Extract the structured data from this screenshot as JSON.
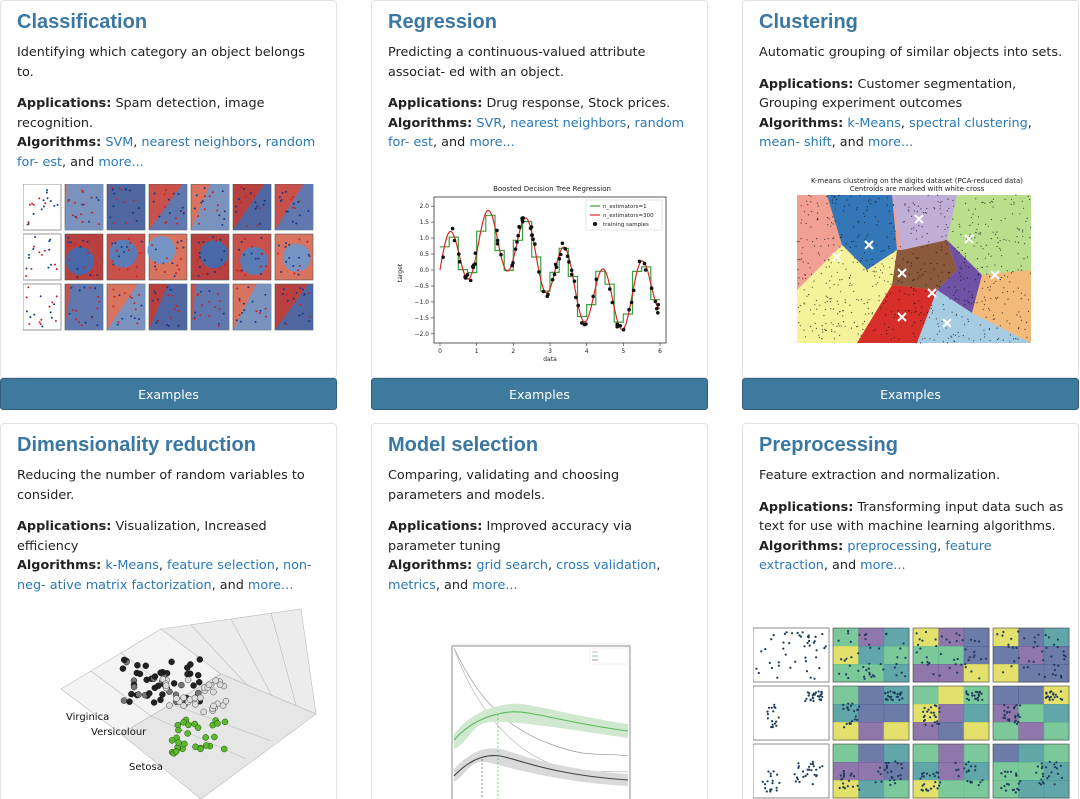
{
  "cards": [
    {
      "title": "Classification",
      "desc": "Identifying which category an object belongs to.",
      "apps_label": "Applications:",
      "apps": "Spam detection, image recognition.",
      "algs_label": "Algorithms:",
      "algs": [
        "SVM",
        "nearest neighbors",
        "random for- est"
      ],
      "more": "more...",
      "button": "Examples"
    },
    {
      "title": "Regression",
      "desc": "Predicting a continuous-valued attribute associat- ed with an object.",
      "apps_label": "Applications:",
      "apps": "Drug response, Stock prices.",
      "algs_label": "Algorithms:",
      "algs": [
        "SVR",
        "nearest neighbors",
        "random for- est"
      ],
      "more": "more...",
      "button": "Examples",
      "chart": {
        "title": "Boosted Decision Tree Regression",
        "xlabel": "data",
        "ylabel": "target",
        "legend": [
          "n_estimators=1",
          "n_estimators=300",
          "training samples"
        ],
        "xticks": [
          "0",
          "1",
          "2",
          "3",
          "4",
          "5",
          "6"
        ],
        "yticks": [
          "2.0",
          "1.5",
          "1.0",
          "0.5",
          "0.0",
          "−0.5",
          "−1.0",
          "−1.5",
          "−2.0"
        ]
      }
    },
    {
      "title": "Clustering",
      "desc": "Automatic grouping of similar objects into sets.",
      "apps_label": "Applications:",
      "apps": "Customer segmentation, Grouping experiment outcomes",
      "algs_label": "Algorithms:",
      "algs": [
        "k-Means",
        "spectral clustering",
        "mean- shift"
      ],
      "more": "more...",
      "button": "Examples",
      "chart": {
        "title_line1": "K-means clustering on the digits dataset (PCA-reduced data)",
        "title_line2": "Centroids are marked with white cross"
      }
    },
    {
      "title": "Dimensionality reduction",
      "desc": "Reducing the number of random variables to consider.",
      "apps_label": "Applications:",
      "apps": "Visualization, Increased efficiency",
      "algs_label": "Algorithms:",
      "algs": [
        "k-Means",
        "feature selection",
        "non-neg- ative matrix factorization"
      ],
      "more": "more...",
      "chart": {
        "labels": [
          "Virginica",
          "Versicolour",
          "Setosa"
        ]
      }
    },
    {
      "title": "Model selection",
      "desc": "Comparing, validating and choosing parameters and models.",
      "apps_label": "Applications:",
      "apps": "Improved accuracy via parameter tuning",
      "algs_label": "Algorithms:",
      "algs": [
        "grid search",
        "cross validation",
        "metrics"
      ],
      "more": "more..."
    },
    {
      "title": "Preprocessing",
      "desc": "Feature extraction and normalization.",
      "apps_label": "Applications:",
      "apps": "Transforming input data such as text for use with machine learning algorithms.",
      "algs_label": "Algorithms:",
      "algs": [
        "preprocessing",
        "feature extraction"
      ],
      "more": "more..."
    }
  ],
  "colors": {
    "title": "#3a77a2",
    "link": "#2a79b4",
    "button": "#3e7a9e",
    "border": "#e2e2e2"
  }
}
